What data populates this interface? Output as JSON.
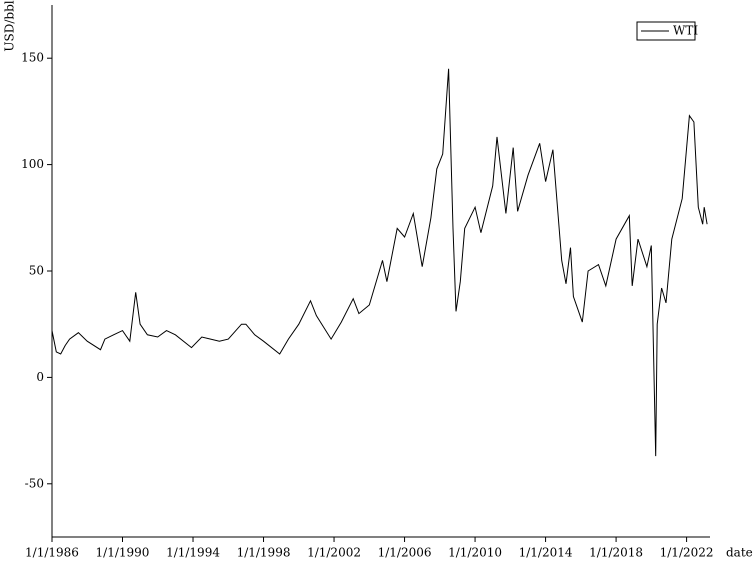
{
  "chart_data": {
    "type": "line",
    "y_label": "USD/bbl",
    "x_label": "date",
    "legend": "upper right",
    "xlim": [
      "1986-01-01",
      "2023-05-01"
    ],
    "xticks": [
      {
        "value": "1986-01-01",
        "label": "1/1/1986"
      },
      {
        "value": "1990-01-01",
        "label": "1/1/1990"
      },
      {
        "value": "1994-01-01",
        "label": "1/1/1994"
      },
      {
        "value": "1998-01-01",
        "label": "1/1/1998"
      },
      {
        "value": "2002-01-01",
        "label": "1/1/2002"
      },
      {
        "value": "2006-01-01",
        "label": "1/1/2006"
      },
      {
        "value": "2010-01-01",
        "label": "1/1/2010"
      },
      {
        "value": "2014-01-01",
        "label": "1/1/2014"
      },
      {
        "value": "2018-01-01",
        "label": "1/1/2018"
      },
      {
        "value": "2022-01-01",
        "label": "1/1/2022"
      }
    ],
    "ylim": [
      -75,
      175
    ],
    "yticks": [
      -50,
      0,
      50,
      100,
      150
    ],
    "x": [
      "1986-01-01",
      "1986-04-01",
      "1986-07-01",
      "1986-10-01",
      "1987-01-01",
      "1987-07-01",
      "1988-01-01",
      "1988-10-01",
      "1989-01-01",
      "1989-07-01",
      "1990-01-01",
      "1990-06-01",
      "1990-10-01",
      "1991-01-01",
      "1991-06-01",
      "1992-01-01",
      "1992-07-01",
      "1993-01-01",
      "1993-12-01",
      "1994-07-01",
      "1995-01-01",
      "1995-07-01",
      "1996-01-01",
      "1996-10-01",
      "1997-01-01",
      "1997-07-01",
      "1998-01-01",
      "1998-12-01",
      "1999-06-01",
      "2000-01-01",
      "2000-09-01",
      "2001-01-01",
      "2001-11-01",
      "2002-06-01",
      "2003-02-01",
      "2003-06-01",
      "2004-01-01",
      "2004-10-01",
      "2005-01-01",
      "2005-08-01",
      "2006-01-01",
      "2006-07-01",
      "2007-01-01",
      "2007-07-01",
      "2007-11-01",
      "2008-03-01",
      "2008-07-01",
      "2008-10-01",
      "2008-12-01",
      "2009-03-01",
      "2009-06-01",
      "2010-01-01",
      "2010-05-01",
      "2011-01-01",
      "2011-04-01",
      "2011-10-01",
      "2012-03-01",
      "2012-06-01",
      "2013-01-01",
      "2013-09-01",
      "2014-01-01",
      "2014-06-01",
      "2014-12-01",
      "2015-03-01",
      "2015-06-01",
      "2015-08-01",
      "2016-02-01",
      "2016-06-01",
      "2017-01-01",
      "2017-06-01",
      "2018-01-01",
      "2018-10-01",
      "2018-12-01",
      "2019-04-01",
      "2019-10-01",
      "2020-01-01",
      "2020-04-01",
      "2020-05-01",
      "2020-08-01",
      "2020-11-01",
      "2021-03-01",
      "2021-10-01",
      "2022-03-01",
      "2022-06-01",
      "2022-09-01",
      "2022-12-01",
      "2023-01-01",
      "2023-03-01"
    ],
    "series": [
      {
        "name": "WTI",
        "color": "#000000",
        "values": [
          22,
          12,
          11,
          15,
          18,
          21,
          17,
          13,
          18,
          20,
          22,
          17,
          40,
          25,
          20,
          19,
          22,
          20,
          14,
          19,
          18,
          17,
          18,
          25,
          25,
          20,
          17,
          11,
          18,
          25,
          36,
          29,
          18,
          26,
          37,
          30,
          34,
          55,
          45,
          70,
          66,
          77,
          52,
          75,
          98,
          105,
          145,
          70,
          31,
          45,
          70,
          80,
          68,
          90,
          113,
          77,
          108,
          78,
          95,
          110,
          92,
          107,
          55,
          44,
          61,
          38,
          26,
          50,
          53,
          43,
          65,
          76,
          43,
          65,
          52,
          62,
          -37,
          25,
          42,
          35,
          65,
          84,
          123,
          120,
          80,
          72,
          80,
          72
        ]
      }
    ]
  }
}
